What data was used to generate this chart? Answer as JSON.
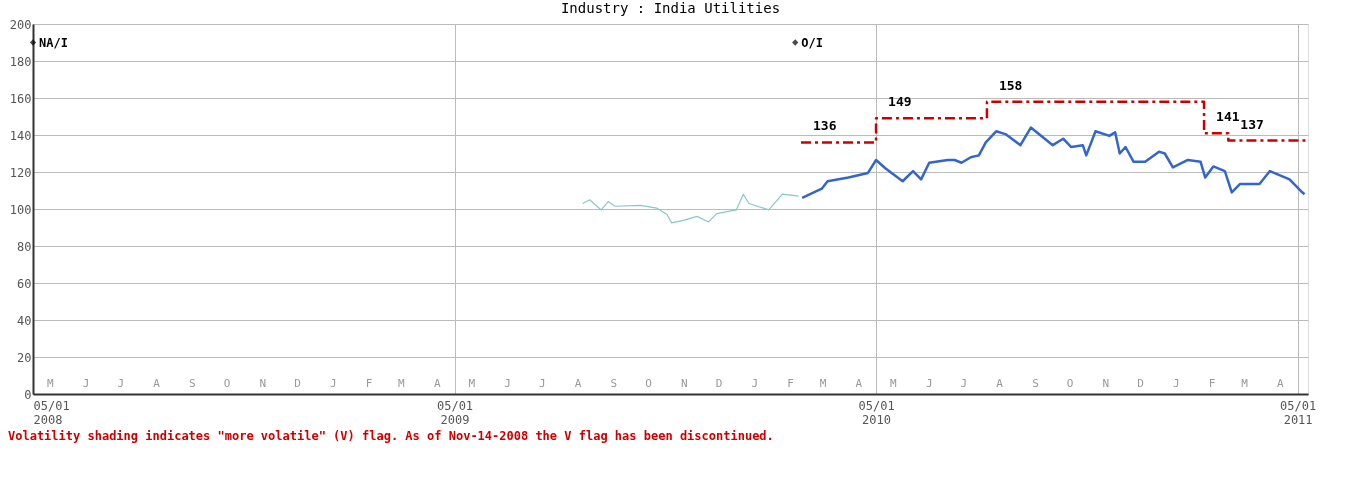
{
  "chart_data": {
    "type": "line",
    "title": "Industry : India Utilities",
    "xlim": [
      "2008-05-01",
      "2011-05-10"
    ],
    "ylim": [
      0,
      200
    ],
    "yticks": [
      0,
      20,
      40,
      60,
      80,
      100,
      120,
      140,
      160,
      180,
      200
    ],
    "xticks": [
      {
        "value": "2008-05-01",
        "label": "05/01\n2008"
      },
      {
        "value": "2009-05-01",
        "label": "05/01\n2009"
      },
      {
        "value": "2010-05-01",
        "label": "05/01\n2010"
      },
      {
        "value": "2011-05-01",
        "label": "05/01\n2011"
      }
    ],
    "grid": true,
    "series": [
      {
        "color": "#88c8c8",
        "x": [
          "2009-08-20",
          "2009-08-26",
          "2009-09-05",
          "2009-09-11",
          "2009-09-17",
          "2009-10-09",
          "2009-10-23",
          "2009-11-01",
          "2009-11-05",
          "2009-11-16",
          "2009-11-27",
          "2009-12-07",
          "2009-12-14",
          "2009-12-31",
          "2010-01-06",
          "2010-01-11",
          "2010-01-28",
          "2010-02-09",
          "2010-02-23"
        ],
        "values": [
          103,
          105,
          99.5,
          104,
          101.5,
          102,
          100.5,
          97,
          92.5,
          94,
          96,
          93,
          97.5,
          99.5,
          108,
          103,
          99.5,
          108,
          107
        ]
      },
      {
        "color": "#3366cc",
        "x": [
          "2010-02-26",
          "2010-03-15",
          "2010-03-20",
          "2010-04-07",
          "2010-04-24",
          "2010-05-01",
          "2010-05-09",
          "2010-05-24",
          "2010-06-02",
          "2010-06-09",
          "2010-06-16",
          "2010-07-02",
          "2010-07-08",
          "2010-07-14",
          "2010-07-22",
          "2010-07-29",
          "2010-08-04",
          "2010-08-13",
          "2010-08-21",
          "2010-09-03",
          "2010-09-12",
          "2010-10-01",
          "2010-10-10",
          "2010-10-17",
          "2010-10-27",
          "2010-10-30",
          "2010-11-07",
          "2010-11-19",
          "2010-11-24",
          "2010-11-28",
          "2010-12-03",
          "2010-12-10",
          "2010-12-20",
          "2011-01-01",
          "2011-01-06",
          "2011-01-13",
          "2011-01-26",
          "2011-02-06",
          "2011-02-10",
          "2011-02-17",
          "2011-02-27",
          "2011-03-05",
          "2011-03-12",
          "2011-03-29",
          "2011-04-07",
          "2011-04-24",
          "2011-05-05",
          "2011-05-07"
        ],
        "values": [
          106,
          111,
          115,
          117,
          119.5,
          126.5,
          122,
          115,
          120.5,
          116,
          125,
          126.5,
          126.5,
          125,
          128,
          129,
          136,
          142,
          140.5,
          134.5,
          144,
          134.5,
          138,
          133.5,
          134.5,
          129,
          142,
          139.5,
          141.5,
          130,
          133.5,
          125.5,
          125.5,
          131,
          130,
          122.5,
          126.5,
          125.5,
          117,
          123,
          120.5,
          109,
          113.5,
          113.5,
          120.5,
          116,
          109,
          108
        ]
      },
      {
        "type": "step",
        "color": "#cc0000",
        "line_style": "dashed",
        "x": [
          "2010-02-25",
          "2010-05-01",
          "2010-08-05",
          "2011-02-09",
          "2011-03-02",
          "2011-05-10"
        ],
        "values": [
          136,
          149,
          158,
          141,
          137,
          137
        ],
        "value_labels": [
          "136",
          "149",
          "158",
          "141",
          "137",
          null
        ]
      }
    ],
    "annotations": [
      {
        "text": "NA/I",
        "x": "2008-05-01",
        "y": 190
      },
      {
        "text": "O/I",
        "x": "2010-02-20",
        "y": 190
      },
      "M",
      "J",
      "J",
      "A",
      "S",
      "O",
      "N",
      "D",
      "J",
      "F",
      "M",
      "A",
      "M",
      "J",
      "J",
      "A",
      "S",
      "O",
      "N",
      "D",
      "J",
      "F",
      "M",
      "A",
      "M",
      "J",
      "J",
      "A",
      "S",
      "O",
      "N",
      "D",
      "J",
      "F",
      "M",
      "A",
      "Volatility shading indicates \"more volatile\" (V) flag. As of Nov-14-2008 the V flag has been discontinued."
    ]
  }
}
